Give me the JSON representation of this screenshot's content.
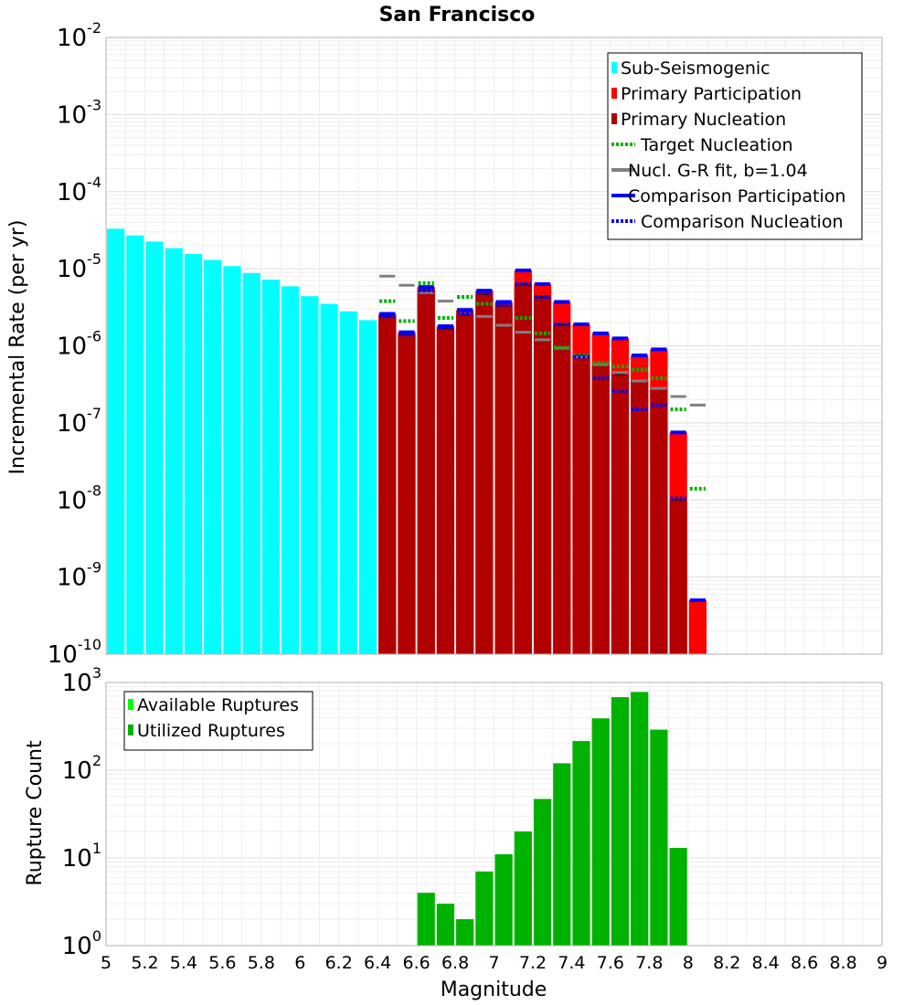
{
  "chart_data": [
    {
      "type": "bar",
      "title": "San Francisco",
      "xlabel": "",
      "ylabel": "Incremental Rate (per yr)",
      "yscale": "log",
      "ylim": [
        1e-10,
        0.01
      ],
      "xlim": [
        5,
        9
      ],
      "bin_width": 0.1,
      "y_tick_labels": [
        {
          "base": "10",
          "exp": "-10"
        },
        {
          "base": "10",
          "exp": "-9"
        },
        {
          "base": "10",
          "exp": "-8"
        },
        {
          "base": "10",
          "exp": "-7"
        },
        {
          "base": "10",
          "exp": "-6"
        },
        {
          "base": "10",
          "exp": "-5"
        },
        {
          "base": "10",
          "exp": "-4"
        },
        {
          "base": "10",
          "exp": "-3"
        },
        {
          "base": "10",
          "exp": "-2"
        }
      ],
      "legend": {
        "placement": "top-right",
        "entries": [
          {
            "label": "Sub-Seismogenic",
            "color": "#00ffff",
            "style": "bar"
          },
          {
            "label": "Primary Participation",
            "color": "#ff0000",
            "style": "bar"
          },
          {
            "label": "Primary Nucleation",
            "color": "#b20000",
            "style": "bar"
          },
          {
            "label": "Target Nucleation",
            "color": "#00b200",
            "style": "dotted"
          },
          {
            "label": "Nucl. G-R fit, b=1.04",
            "color": "#808080",
            "style": "solid"
          },
          {
            "label": "Comparison Participation",
            "color": "#0000ff",
            "style": "solid"
          },
          {
            "label": "Comparison Nucleation",
            "color": "#0000ff",
            "style": "dotted"
          }
        ]
      },
      "series": [
        {
          "name": "Sub-Seismogenic",
          "color": "#00ffff",
          "x": [
            5.05,
            5.15,
            5.25,
            5.35,
            5.45,
            5.55,
            5.65,
            5.75,
            5.85,
            5.95,
            6.05,
            6.15,
            6.25,
            6.35
          ],
          "values": [
            3.3e-05,
            2.7e-05,
            2.25e-05,
            1.85e-05,
            1.55e-05,
            1.3e-05,
            1.08e-05,
            8.8e-06,
            7.2e-06,
            5.9e-06,
            4.4e-06,
            3.5e-06,
            2.8e-06,
            2.15e-06
          ]
        },
        {
          "name": "Primary Participation",
          "color": "#ff0000",
          "x": [
            6.45,
            6.55,
            6.65,
            6.75,
            6.85,
            6.95,
            7.05,
            7.15,
            7.25,
            7.35,
            7.45,
            7.55,
            7.65,
            7.75,
            7.85,
            7.95,
            8.05
          ],
          "values": [
            2.6e-06,
            1.5e-06,
            5.8e-06,
            1.8e-06,
            2.9e-06,
            5.2e-06,
            3.7e-06,
            9.5e-06,
            6.3e-06,
            3.7e-06,
            1.9e-06,
            1.45e-06,
            1.25e-06,
            7.5e-07,
            9e-07,
            7.5e-08,
            5e-10
          ]
        },
        {
          "name": "Primary Nucleation",
          "color": "#b20000",
          "x": [
            6.45,
            6.55,
            6.65,
            6.75,
            6.85,
            6.95,
            7.05,
            7.15,
            7.25,
            7.35,
            7.45,
            7.55,
            7.65,
            7.75,
            7.85,
            7.95
          ],
          "values": [
            2.4e-06,
            1.4e-06,
            5.2e-06,
            1.7e-06,
            2.5e-06,
            4.7e-06,
            3.3e-06,
            6.3e-06,
            4.3e-06,
            1.9e-06,
            7.5e-07,
            5.6e-07,
            4.3e-07,
            3.5e-07,
            2.8e-07,
            1e-08
          ]
        },
        {
          "name": "Target Nucleation",
          "color": "#00b200",
          "x": [
            6.45,
            6.55,
            6.65,
            6.75,
            6.85,
            6.95,
            7.05,
            7.15,
            7.25,
            7.35,
            7.45,
            7.55,
            7.65,
            7.75,
            7.85,
            7.95,
            8.05
          ],
          "values": [
            3.8e-06,
            2.1e-06,
            6.5e-06,
            2.3e-06,
            4.3e-06,
            3.5e-06,
            3.7e-06,
            2.3e-06,
            1.45e-06,
            9.5e-07,
            7.5e-07,
            6e-07,
            5.4e-07,
            4.9e-07,
            3.8e-07,
            1.5e-07,
            1.4e-08
          ]
        },
        {
          "name": "Nucl. G-R fit, b=1.04",
          "color": "#808080",
          "x": [
            6.45,
            6.55,
            6.65,
            6.75,
            6.85,
            6.95,
            7.05,
            7.15,
            7.25,
            7.35,
            7.45,
            7.55,
            7.65,
            7.75,
            7.85,
            7.95,
            8.05
          ],
          "values": [
            8e-06,
            6.1e-06,
            4.9e-06,
            3.8e-06,
            3e-06,
            2.4e-06,
            1.85e-06,
            1.5e-06,
            1.2e-06,
            9.3e-07,
            7.2e-07,
            5.7e-07,
            4.5e-07,
            3.5e-07,
            2.8e-07,
            2.2e-07,
            1.7e-07
          ]
        },
        {
          "name": "Comparison Participation",
          "color": "#0000ff",
          "x": [
            6.45,
            6.55,
            6.65,
            6.75,
            6.85,
            6.95,
            7.05,
            7.15,
            7.25,
            7.35,
            7.45,
            7.55,
            7.65,
            7.75,
            7.85,
            7.95,
            8.05
          ],
          "values": [
            2.6e-06,
            1.5e-06,
            5.8e-06,
            1.8e-06,
            2.9e-06,
            5.2e-06,
            3.7e-06,
            9.5e-06,
            6.3e-06,
            3.7e-06,
            1.9e-06,
            1.45e-06,
            1.25e-06,
            7.5e-07,
            9e-07,
            7.5e-08,
            5e-10
          ]
        },
        {
          "name": "Comparison Nucleation",
          "color": "#0000ff",
          "x": [
            6.45,
            6.55,
            6.65,
            6.75,
            6.85,
            6.95,
            7.05,
            7.15,
            7.25,
            7.35,
            7.45,
            7.55,
            7.65,
            7.75,
            7.85,
            7.95
          ],
          "values": [
            2.4e-06,
            1.4e-06,
            5.2e-06,
            1.7e-06,
            2.6e-06,
            4.9e-06,
            3.4e-06,
            6.3e-06,
            4.3e-06,
            1.9e-06,
            7.2e-07,
            3.8e-07,
            2.6e-07,
            1.5e-07,
            1.7e-07,
            1.05e-08
          ]
        }
      ]
    },
    {
      "type": "bar",
      "title": "",
      "xlabel": "Magnitude",
      "ylabel": "Rupture Count",
      "yscale": "log",
      "ylim": [
        1,
        1000
      ],
      "xlim": [
        5,
        9
      ],
      "bin_width": 0.1,
      "x_ticks": [
        "5",
        "5.2",
        "5.4",
        "5.6",
        "5.8",
        "6",
        "6.2",
        "6.4",
        "6.6",
        "6.8",
        "7",
        "7.2",
        "7.4",
        "7.6",
        "7.8",
        "8",
        "8.2",
        "8.4",
        "8.6",
        "8.8",
        "9"
      ],
      "y_tick_labels": [
        {
          "base": "10",
          "exp": "0"
        },
        {
          "base": "10",
          "exp": "1"
        },
        {
          "base": "10",
          "exp": "2"
        },
        {
          "base": "10",
          "exp": "3"
        }
      ],
      "legend": {
        "placement": "top-left",
        "entries": [
          {
            "label": "Available Ruptures",
            "color": "#00ff00",
            "style": "bar"
          },
          {
            "label": "Utilized Ruptures",
            "color": "#00b200",
            "style": "bar"
          }
        ]
      },
      "series": [
        {
          "name": "Utilized Ruptures",
          "color": "#00b200",
          "x": [
            6.65,
            6.75,
            6.85,
            6.95,
            7.05,
            7.15,
            7.25,
            7.35,
            7.45,
            7.55,
            7.65,
            7.75,
            7.85,
            7.95
          ],
          "values": [
            4,
            3,
            2,
            7,
            11,
            20,
            47,
            120,
            215,
            390,
            680,
            780,
            290,
            13
          ]
        }
      ]
    }
  ]
}
